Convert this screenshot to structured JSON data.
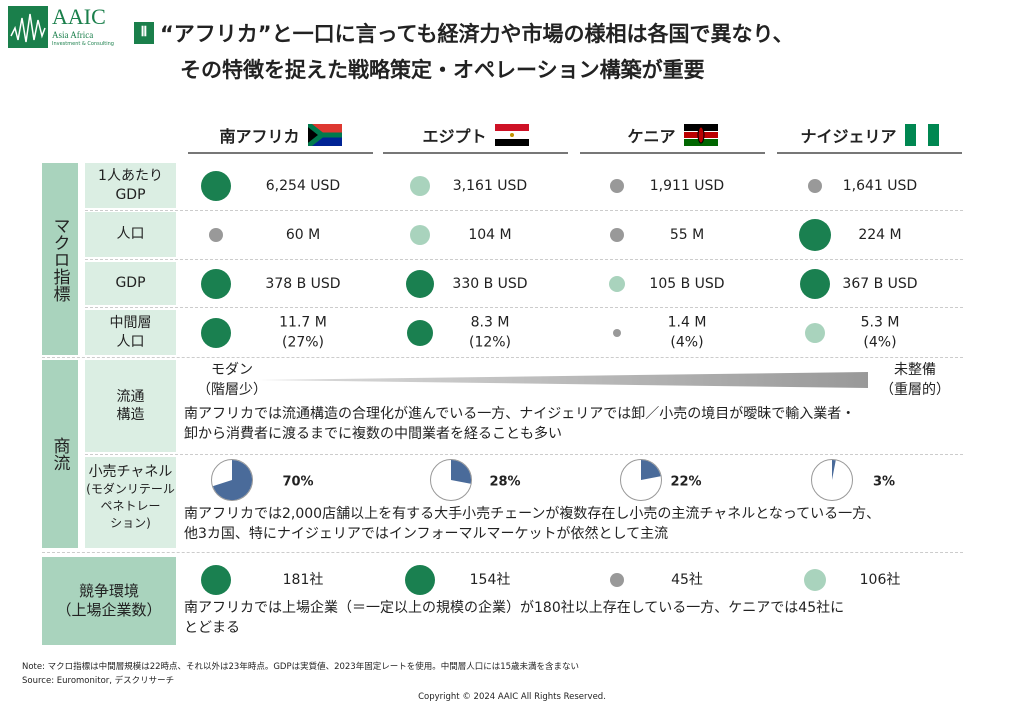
{
  "logo": {
    "name": "AAIC",
    "sub": "Asia Africa",
    "sub2": "Investment & Consulting"
  },
  "section": "Ⅱ",
  "title": [
    "“アフリカ”と一口に言っても経済力や市場の様相は各国で異なり、",
    "その特徴を捉えた戦略策定・オペレーション構築が重要"
  ],
  "countries": [
    {
      "name": "南アフリカ",
      "flag": "za"
    },
    {
      "name": "エジプト",
      "flag": "eg"
    },
    {
      "name": "ケニア",
      "flag": "ke"
    },
    {
      "name": "ナイジェリア",
      "flag": "ng"
    }
  ],
  "colors": {
    "dark": "#1a8050",
    "light": "#a9d3bd",
    "grey": "#999999",
    "pie": "#4a6b9a"
  },
  "groups": {
    "macro": "マクロ指標",
    "commerce": "商流",
    "competition_label": "競争環境\n（上場企業数）"
  },
  "macro_rows": [
    {
      "label": "1人あたり\nGDP",
      "cells": [
        {
          "v": "6,254 USD",
          "c": "dark",
          "s": 30
        },
        {
          "v": "3,161 USD",
          "c": "light",
          "s": 20
        },
        {
          "v": "1,911 USD",
          "c": "grey",
          "s": 14
        },
        {
          "v": "1,641 USD",
          "c": "grey",
          "s": 14
        }
      ]
    },
    {
      "label": "人口",
      "cells": [
        {
          "v": "60 M",
          "c": "grey",
          "s": 14
        },
        {
          "v": "104 M",
          "c": "light",
          "s": 20
        },
        {
          "v": "55 M",
          "c": "grey",
          "s": 14
        },
        {
          "v": "224 M",
          "c": "dark",
          "s": 32
        }
      ]
    },
    {
      "label": "GDP",
      "cells": [
        {
          "v": "378 B USD",
          "c": "dark",
          "s": 30
        },
        {
          "v": "330 B USD",
          "c": "dark",
          "s": 28
        },
        {
          "v": "105 B USD",
          "c": "light",
          "s": 16
        },
        {
          "v": "367 B USD",
          "c": "dark",
          "s": 30
        }
      ]
    },
    {
      "label": "中間層\n人口",
      "cells": [
        {
          "v": "11.7 M\n(27%)",
          "c": "dark",
          "s": 30
        },
        {
          "v": "8.3 M\n(12%)",
          "c": "dark",
          "s": 26
        },
        {
          "v": "1.4 M\n(4%)",
          "c": "grey",
          "s": 8
        },
        {
          "v": "5.3 M\n(4%)",
          "c": "light",
          "s": 20
        }
      ]
    }
  ],
  "distribution": {
    "label": "流通\n構造",
    "left": "モダン\n（階層少）",
    "right": "未整備\n（重層的）",
    "note": "南アフリカでは流通構造の合理化が進んでいる一方、ナイジェリアでは卸／小売の境目が曖昧で輸入業者・\n卸から消費者に渡るまでに複数の中間業者を経ることも多い"
  },
  "retail": {
    "label": "小売チャネル",
    "sublabel": "(モダンリテール\nペネトレー\nション)",
    "values": [
      70,
      28,
      22,
      3
    ],
    "labels": [
      "70%",
      "28%",
      "22%",
      "3%"
    ],
    "note": "南アフリカでは2,000店舗以上を有する大手小売チェーンが複数存在し小売の主流チャネルとなっている一方、\n他3カ国、特にナイジェリアではインフォーマルマーケットが依然として主流"
  },
  "competition": {
    "cells": [
      {
        "v": "181社",
        "c": "dark",
        "s": 30
      },
      {
        "v": "154社",
        "c": "dark",
        "s": 30
      },
      {
        "v": "45社",
        "c": "grey",
        "s": 14
      },
      {
        "v": "106社",
        "c": "light",
        "s": 22
      }
    ],
    "note": "南アフリカでは上場企業（＝一定以上の規模の企業）が180社以上存在している一方、ケニアでは45社に\nとどまる"
  },
  "footer": {
    "note": "Note: マクロ指標は中間層規模は22時点、それ以外は23年時点。GDPは実質値、2023年固定レートを使用。中間層人口には15歳未満を含まない",
    "source": "Source: Euromonitor, デスクリサーチ",
    "copyright": "Copyright © 2024 AAIC All Rights Reserved."
  }
}
